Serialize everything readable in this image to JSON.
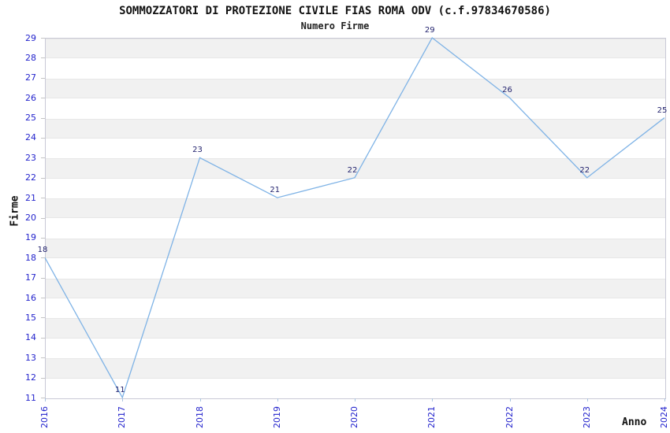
{
  "chart_data": {
    "type": "line",
    "title": "SOMMOZZATORI DI PROTEZIONE CIVILE FIAS ROMA ODV (c.f.97834670586)",
    "subtitle": "Numero Firme",
    "xlabel": "Anno",
    "ylabel": "Firme",
    "x": [
      2016,
      2017,
      2018,
      2019,
      2020,
      2021,
      2022,
      2023,
      2024
    ],
    "values": [
      18,
      11,
      23,
      21,
      22,
      29,
      26,
      22,
      25
    ],
    "point_labels": [
      "18",
      "11",
      "23",
      "21",
      "22",
      "29",
      "26",
      "22",
      "25"
    ],
    "ylim": [
      11,
      29
    ],
    "ytick_step": 1,
    "grid": "horizontal-bands",
    "legend_position": "none",
    "colors": {
      "line": "#7fb3e6",
      "tick_label": "#2424cd",
      "point_label": "#23236e",
      "band": "#f1f1f1",
      "band_edge": "#e7e7e7",
      "plot_border": "#c9c9d6",
      "title_text": "#111111"
    }
  }
}
